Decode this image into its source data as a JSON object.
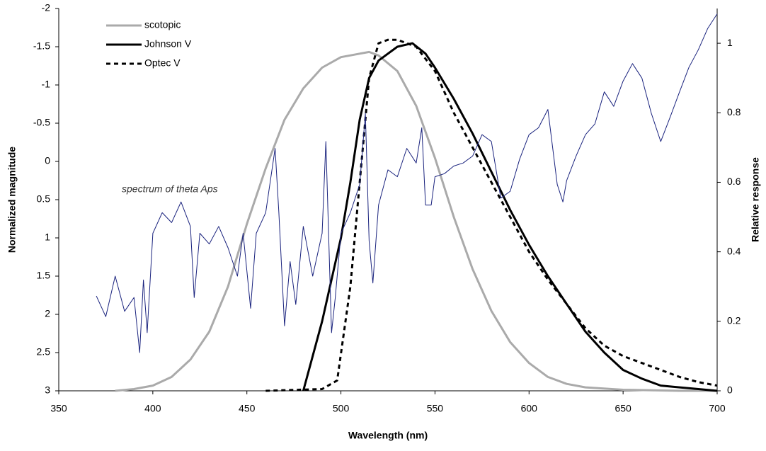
{
  "chart_data": {
    "type": "line",
    "xlabel": "Wavelength (nm)",
    "ylabel": "Normalized magnitude",
    "y2label": "Relative response",
    "annotation": "spectrum of theta Aps",
    "xlim": [
      350,
      700
    ],
    "xticks": [
      350,
      400,
      450,
      500,
      550,
      600,
      650,
      700
    ],
    "ylim": [
      3,
      -2
    ],
    "yticks": [
      -2,
      -1.5,
      -1,
      -0.5,
      0,
      0.5,
      1,
      1.5,
      2,
      2.5,
      3
    ],
    "y2lim": [
      0,
      1.1
    ],
    "y2ticks": [
      0,
      0.2,
      0.4,
      0.6,
      0.8,
      1
    ],
    "legend": "top-left",
    "series": [
      {
        "name": "scotopic",
        "color": "#aaaaaa",
        "axis": "y2",
        "style": "solid",
        "x": [
          380,
          390,
          400,
          410,
          420,
          430,
          440,
          450,
          460,
          470,
          480,
          490,
          500,
          510,
          515,
          520,
          530,
          540,
          550,
          560,
          570,
          580,
          590,
          600,
          610,
          620,
          630,
          650,
          680,
          700
        ],
        "values": [
          0,
          0.005,
          0.015,
          0.04,
          0.09,
          0.17,
          0.3,
          0.48,
          0.64,
          0.78,
          0.87,
          0.93,
          0.96,
          0.97,
          0.975,
          0.965,
          0.92,
          0.82,
          0.67,
          0.5,
          0.35,
          0.23,
          0.14,
          0.08,
          0.04,
          0.02,
          0.01,
          0.003,
          0,
          0
        ]
      },
      {
        "name": "Johnson V",
        "color": "#000000",
        "axis": "y2",
        "style": "solid",
        "x": [
          480,
          490,
          500,
          505,
          510,
          515,
          520,
          530,
          538,
          545,
          550,
          560,
          570,
          580,
          590,
          600,
          610,
          620,
          630,
          640,
          650,
          660,
          670,
          680,
          690,
          700
        ],
        "values": [
          0,
          0.2,
          0.44,
          0.6,
          0.78,
          0.9,
          0.95,
          0.99,
          1.0,
          0.97,
          0.93,
          0.84,
          0.74,
          0.63,
          0.52,
          0.42,
          0.33,
          0.25,
          0.17,
          0.11,
          0.06,
          0.035,
          0.015,
          0.01,
          0.005,
          0
        ]
      },
      {
        "name": "Optec V",
        "color": "#000000",
        "axis": "y2",
        "style": "dashed",
        "x": [
          460,
          490,
          498,
          505,
          510,
          515,
          520,
          525,
          530,
          540,
          550,
          560,
          570,
          580,
          590,
          600,
          610,
          620,
          630,
          640,
          650,
          660,
          670,
          680,
          690,
          700
        ],
        "values": [
          0,
          0.005,
          0.03,
          0.3,
          0.6,
          0.9,
          1.0,
          1.01,
          1.01,
          0.99,
          0.92,
          0.8,
          0.7,
          0.6,
          0.5,
          0.4,
          0.32,
          0.25,
          0.18,
          0.13,
          0.1,
          0.08,
          0.06,
          0.04,
          0.025,
          0.015
        ]
      },
      {
        "color": "#1a237e",
        "axis": "y",
        "style": "thin",
        "x": [
          370,
          375,
          380,
          385,
          390,
          393,
          395,
          397,
          400,
          405,
          410,
          415,
          420,
          422,
          425,
          430,
          435,
          440,
          445,
          448,
          452,
          455,
          460,
          465,
          467,
          470,
          473,
          476,
          480,
          485,
          490,
          492,
          495,
          497,
          500,
          505,
          510,
          513,
          515,
          517,
          520,
          525,
          530,
          535,
          540,
          543,
          545,
          548,
          550,
          555,
          560,
          565,
          570,
          575,
          580,
          585,
          590,
          595,
          600,
          605,
          610,
          615,
          618,
          620,
          625,
          630,
          635,
          640,
          645,
          650,
          655,
          660,
          665,
          670,
          675,
          680,
          685,
          690,
          695,
          700
        ],
        "values": [
          1.76,
          2.03,
          1.5,
          1.96,
          1.78,
          2.5,
          1.55,
          2.24,
          0.94,
          0.67,
          0.8,
          0.53,
          0.85,
          1.78,
          0.94,
          1.08,
          0.85,
          1.13,
          1.5,
          0.94,
          1.92,
          0.94,
          0.67,
          -0.17,
          0.67,
          2.15,
          1.31,
          1.87,
          0.85,
          1.5,
          0.94,
          -0.26,
          2.24,
          1.78,
          0.94,
          0.67,
          0.3,
          -0.63,
          1.04,
          1.59,
          0.57,
          0.11,
          0.2,
          -0.17,
          0.02,
          -0.44,
          0.57,
          0.57,
          0.2,
          0.16,
          0.06,
          0.02,
          -0.07,
          -0.35,
          -0.26,
          0.48,
          0.39,
          -0.03,
          -0.35,
          -0.44,
          -0.68,
          0.3,
          0.53,
          0.25,
          -0.07,
          -0.35,
          -0.49,
          -0.91,
          -0.72,
          -1.05,
          -1.28,
          -1.09,
          -0.63,
          -0.26,
          -0.58,
          -0.91,
          -1.23,
          -1.46,
          -1.74,
          -1.93
        ]
      }
    ]
  }
}
